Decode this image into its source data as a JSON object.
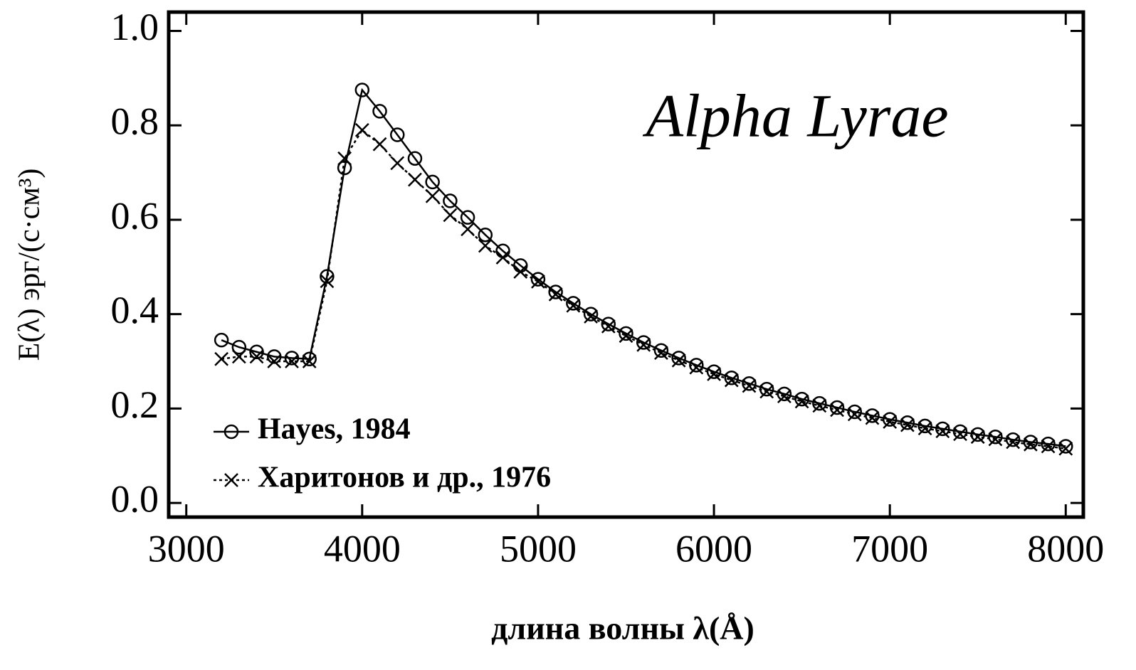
{
  "chart_data": {
    "type": "line",
    "annotation": "Alpha Lyrae",
    "xlabel": "длина волны λ(Å)",
    "ylabel": "E(λ) эрг/(с·см³)",
    "x": [
      3200,
      3300,
      3400,
      3500,
      3600,
      3700,
      3800,
      3900,
      4000,
      4100,
      4200,
      4300,
      4400,
      4500,
      4600,
      4700,
      4800,
      4900,
      5000,
      5100,
      5200,
      5300,
      5400,
      5500,
      5600,
      5700,
      5800,
      5900,
      6000,
      6100,
      6200,
      6300,
      6400,
      6500,
      6600,
      6700,
      6800,
      6900,
      7000,
      7100,
      7200,
      7300,
      7400,
      7500,
      7600,
      7700,
      7800,
      7900,
      8000
    ],
    "series": [
      {
        "name": "Hayes, 1984",
        "color": "#000000",
        "marker": "circle",
        "values": [
          0.345,
          0.33,
          0.32,
          0.31,
          0.307,
          0.305,
          0.48,
          0.71,
          0.875,
          0.83,
          0.78,
          0.73,
          0.68,
          0.64,
          0.605,
          0.568,
          0.534,
          0.503,
          0.474,
          0.447,
          0.423,
          0.4,
          0.379,
          0.359,
          0.34,
          0.323,
          0.307,
          0.292,
          0.278,
          0.265,
          0.253,
          0.241,
          0.231,
          0.22,
          0.211,
          0.202,
          0.193,
          0.185,
          0.177,
          0.17,
          0.163,
          0.157,
          0.151,
          0.145,
          0.14,
          0.134,
          0.129,
          0.125,
          0.12
        ]
      },
      {
        "name": "Харитонов и др., 1976",
        "color": "#000000",
        "marker": "cross",
        "values": [
          0.305,
          0.31,
          0.31,
          0.3,
          0.3,
          0.3,
          0.47,
          0.73,
          0.79,
          0.76,
          0.72,
          0.685,
          0.65,
          0.61,
          0.58,
          0.545,
          0.52,
          0.49,
          0.469,
          0.442,
          0.418,
          0.395,
          0.374,
          0.354,
          0.335,
          0.318,
          0.302,
          0.287,
          0.273,
          0.26,
          0.248,
          0.236,
          0.226,
          0.215,
          0.206,
          0.197,
          0.188,
          0.18,
          0.172,
          0.165,
          0.158,
          0.152,
          0.146,
          0.14,
          0.135,
          0.129,
          0.124,
          0.12,
          0.115
        ]
      }
    ],
    "xlim": [
      2900,
      8100
    ],
    "xticks": [
      3000,
      4000,
      5000,
      6000,
      7000,
      8000
    ],
    "ylim": [
      -0.03,
      1.04
    ],
    "yticks": [
      {
        "value": 0,
        "label": "0.0"
      },
      0.2,
      0.4,
      0.6,
      0.8,
      {
        "value": 1,
        "label": "1.0"
      }
    ],
    "legend": "lower left"
  }
}
